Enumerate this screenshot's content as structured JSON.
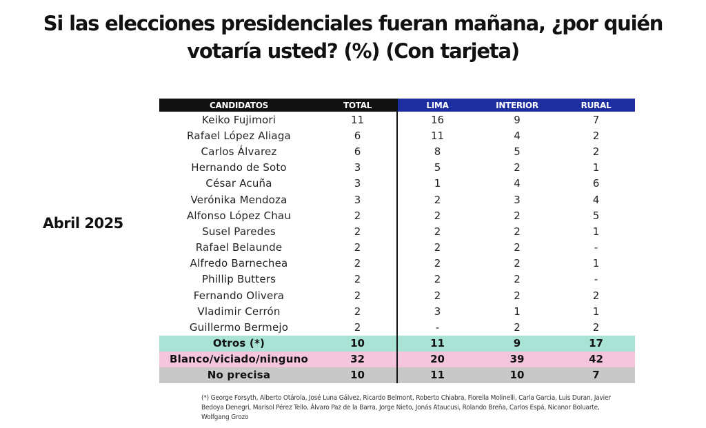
{
  "title": {
    "line1": "Si las elecciones presidenciales fueran mañana, ¿por quién",
    "line2": "votaría usted? (%) (Con tarjeta)"
  },
  "side_label": "Abril 2025",
  "colors": {
    "header_black": "#111111",
    "header_blue": "#1d2fa0",
    "otros_row": "#a8e3d6",
    "blanco_row": "#f4c6dd",
    "no_precisa_row": "#c8c8c8"
  },
  "chart_data": {
    "type": "table",
    "columns": [
      "CANDIDATOS",
      "TOTAL",
      "LIMA",
      "INTERIOR",
      "RURAL"
    ],
    "rows": [
      {
        "candidate": "Keiko Fujimori",
        "total": "11",
        "lima": "16",
        "interior": "9",
        "rural": "7"
      },
      {
        "candidate": "Rafael López Aliaga",
        "total": "6",
        "lima": "11",
        "interior": "4",
        "rural": "2"
      },
      {
        "candidate": "Carlos Álvarez",
        "total": "6",
        "lima": "8",
        "interior": "5",
        "rural": "2"
      },
      {
        "candidate": "Hernando de Soto",
        "total": "3",
        "lima": "5",
        "interior": "2",
        "rural": "1"
      },
      {
        "candidate": "César Acuña",
        "total": "3",
        "lima": "1",
        "interior": "4",
        "rural": "6"
      },
      {
        "candidate": "Verónika Mendoza",
        "total": "3",
        "lima": "2",
        "interior": "3",
        "rural": "4"
      },
      {
        "candidate": "Alfonso López Chau",
        "total": "2",
        "lima": "2",
        "interior": "2",
        "rural": "5"
      },
      {
        "candidate": "Susel Paredes",
        "total": "2",
        "lima": "2",
        "interior": "2",
        "rural": "1"
      },
      {
        "candidate": "Rafael Belaunde",
        "total": "2",
        "lima": "2",
        "interior": "2",
        "rural": "-"
      },
      {
        "candidate": "Alfredo Barnechea",
        "total": "2",
        "lima": "2",
        "interior": "2",
        "rural": "1"
      },
      {
        "candidate": "Phillip Butters",
        "total": "2",
        "lima": "2",
        "interior": "2",
        "rural": "-"
      },
      {
        "candidate": "Fernando Olivera",
        "total": "2",
        "lima": "2",
        "interior": "2",
        "rural": "2"
      },
      {
        "candidate": "Vladimir Cerrón",
        "total": "2",
        "lima": "3",
        "interior": "1",
        "rural": "1"
      },
      {
        "candidate": "Guillermo Bermejo",
        "total": "2",
        "lima": "-",
        "interior": "2",
        "rural": "2"
      }
    ],
    "summary_rows": [
      {
        "candidate": "Otros (*)",
        "total": "10",
        "lima": "11",
        "interior": "9",
        "rural": "17"
      },
      {
        "candidate": "Blanco/viciado/ninguno",
        "total": "32",
        "lima": "20",
        "interior": "39",
        "rural": "42"
      },
      {
        "candidate": "No precisa",
        "total": "10",
        "lima": "11",
        "interior": "10",
        "rural": "7"
      }
    ]
  },
  "footnote": "(*) George Forsyth, Alberto Otárola, José Luna Gálvez, Ricardo Belmont, Roberto Chiabra, Fiorella Molinelli, Carla Garcia, Luis Duran, Javier Bedoya Denegri, Marisol Pérez Tello, Álvaro Paz de la Barra, Jorge Nieto, Jonás Ataucusi, Rolando Breña, Carlos Espá, Nicanor Boluarte, Wolfgang Grozo"
}
